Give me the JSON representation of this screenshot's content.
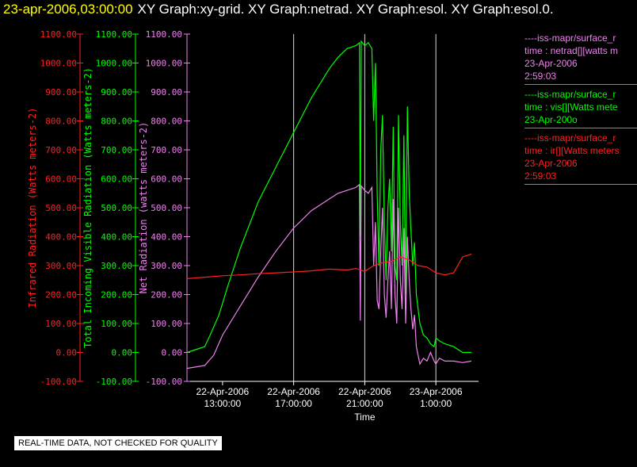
{
  "header": {
    "date_time": "23-apr-2006,03:00:00",
    "titles": "XY Graph:xy-grid.  XY Graph:netrad.  XY Graph:esol.  XY Graph:esol.0."
  },
  "colors": {
    "red": "#ff2020",
    "green": "#00ff00",
    "violet": "#ee82ee",
    "white": "#ffffff",
    "yellow": "#ffff00"
  },
  "legend": [
    {
      "lines": [
        "----iss-mapr/surface_r",
        "time : netrad[][watts m",
        "23-Apr-2006",
        "2:59:03"
      ],
      "color": "#ee82ee"
    },
    {
      "lines": [
        "----iss-mapr/surface_r",
        "time : vis[][Watts mete",
        "23-Apr-200o"
      ],
      "color": "#00ff00"
    },
    {
      "lines": [
        "----iss-mapr/surface_r",
        "time : ir[][Watts meters",
        "23-Apr-2006",
        "2:59:03"
      ],
      "color": "#ff2020"
    }
  ],
  "quality_note": "REAL-TIME DATA, NOT CHECKED FOR QUALITY",
  "chart_data": {
    "type": "line",
    "xlabel": "Time",
    "x_ticks": [
      {
        "t": 13,
        "line1": "22-Apr-2006",
        "line2": "13:00:00"
      },
      {
        "t": 17,
        "line1": "22-Apr-2006",
        "line2": "17:00:00"
      },
      {
        "t": 21,
        "line1": "22-Apr-2006",
        "line2": "21:00:00"
      },
      {
        "t": 25,
        "line1": "23-Apr-2006",
        "line2": "1:00:00"
      }
    ],
    "xlim": [
      11.0,
      27.4
    ],
    "ylim": [
      -100,
      1100
    ],
    "grid_x": [
      17,
      21,
      25
    ],
    "y_axes": [
      {
        "label": "Infrared Radiation (Watts meters-2)",
        "color": "#ff2020",
        "ticks": [
          "1100.00",
          "1000.00",
          "900.00",
          "800.00",
          "700.00",
          "600.00",
          "500.00",
          "400.00",
          "300.00",
          "200.00",
          "100.00",
          "0.00",
          "-100.00"
        ]
      },
      {
        "label": "Total Incoming Visible Radiation (Watts meters-2)",
        "color": "#00ff00",
        "ticks": [
          "1100.00",
          "1000.00",
          "900.00",
          "800.00",
          "700.00",
          "600.00",
          "500.00",
          "400.00",
          "300.00",
          "200.00",
          "100.00",
          "0.00",
          "-100.00"
        ]
      },
      {
        "label": "Net Radiation (watts meters-2)",
        "color": "#ee82ee",
        "ticks": [
          "1100.00",
          "1000.00",
          "900.00",
          "800.00",
          "700.00",
          "600.00",
          "500.00",
          "400.00",
          "300.00",
          "200.00",
          "100.00",
          "0.00",
          "-100.00"
        ]
      }
    ],
    "series": [
      {
        "color": "#00ff00",
        "x": [
          11.0,
          12.0,
          12.3,
          12.8,
          13.3,
          14.0,
          15.0,
          16.0,
          17.0,
          18.0,
          19.0,
          19.5,
          20.0,
          20.5,
          20.7,
          20.75,
          20.8,
          21.0,
          21.2,
          21.4,
          21.5,
          21.6,
          21.7,
          21.8,
          21.9,
          22.0,
          22.1,
          22.2,
          22.3,
          22.4,
          22.5,
          22.6,
          22.7,
          22.8,
          22.9,
          23.0,
          23.1,
          23.2,
          23.3,
          23.4,
          23.5,
          23.6,
          23.7,
          23.8,
          23.9,
          24.0,
          24.1,
          24.3,
          24.5,
          24.7,
          24.9,
          25.0,
          25.2,
          25.5,
          26.0,
          26.5,
          27.0
        ],
        "y": [
          0,
          20,
          60,
          130,
          230,
          360,
          520,
          640,
          760,
          880,
          980,
          1020,
          1050,
          1060,
          1070,
          400,
          1075,
          1060,
          1070,
          1050,
          800,
          1000,
          550,
          300,
          700,
          820,
          450,
          250,
          500,
          600,
          350,
          780,
          300,
          250,
          820,
          450,
          300,
          750,
          200,
          850,
          550,
          420,
          300,
          380,
          200,
          150,
          100,
          60,
          50,
          30,
          20,
          50,
          40,
          30,
          20,
          0,
          0
        ]
      },
      {
        "color": "#ee82ee",
        "x": [
          11.0,
          12.0,
          12.5,
          13.0,
          14.0,
          15.0,
          16.0,
          17.0,
          18.0,
          19.0,
          19.5,
          20.0,
          20.5,
          20.7,
          20.75,
          20.8,
          21.0,
          21.2,
          21.4,
          21.5,
          21.6,
          21.7,
          21.8,
          21.9,
          22.0,
          22.1,
          22.2,
          22.3,
          22.4,
          22.5,
          22.6,
          22.7,
          22.8,
          22.9,
          23.0,
          23.1,
          23.2,
          23.3,
          23.4,
          23.5,
          23.6,
          23.7,
          23.8,
          23.9,
          24.0,
          24.1,
          24.3,
          24.5,
          24.7,
          24.9,
          25.0,
          25.2,
          25.5,
          26.0,
          26.5,
          27.0
        ],
        "y": [
          -55,
          -45,
          -10,
          60,
          160,
          260,
          350,
          430,
          490,
          530,
          550,
          560,
          570,
          580,
          110,
          575,
          560,
          550,
          570,
          300,
          450,
          180,
          150,
          350,
          500,
          200,
          120,
          250,
          350,
          150,
          530,
          200,
          100,
          500,
          250,
          150,
          430,
          100,
          400,
          250,
          150,
          80,
          130,
          20,
          -10,
          -40,
          -20,
          -30,
          0,
          -30,
          -40,
          -20,
          -30,
          -30,
          -35,
          -30
        ]
      },
      {
        "color": "#ff2020",
        "x": [
          11.0,
          12.0,
          13.0,
          14.0,
          15.0,
          16.0,
          17.0,
          18.0,
          19.0,
          20.0,
          20.5,
          21.0,
          21.5,
          22.0,
          22.5,
          23.0,
          23.5,
          24.0,
          24.5,
          25.0,
          25.5,
          26.0,
          26.5,
          27.0
        ],
        "y": [
          255,
          260,
          265,
          268,
          272,
          275,
          278,
          282,
          288,
          285,
          290,
          280,
          300,
          310,
          315,
          330,
          320,
          300,
          295,
          275,
          268,
          275,
          330,
          340
        ]
      }
    ]
  }
}
